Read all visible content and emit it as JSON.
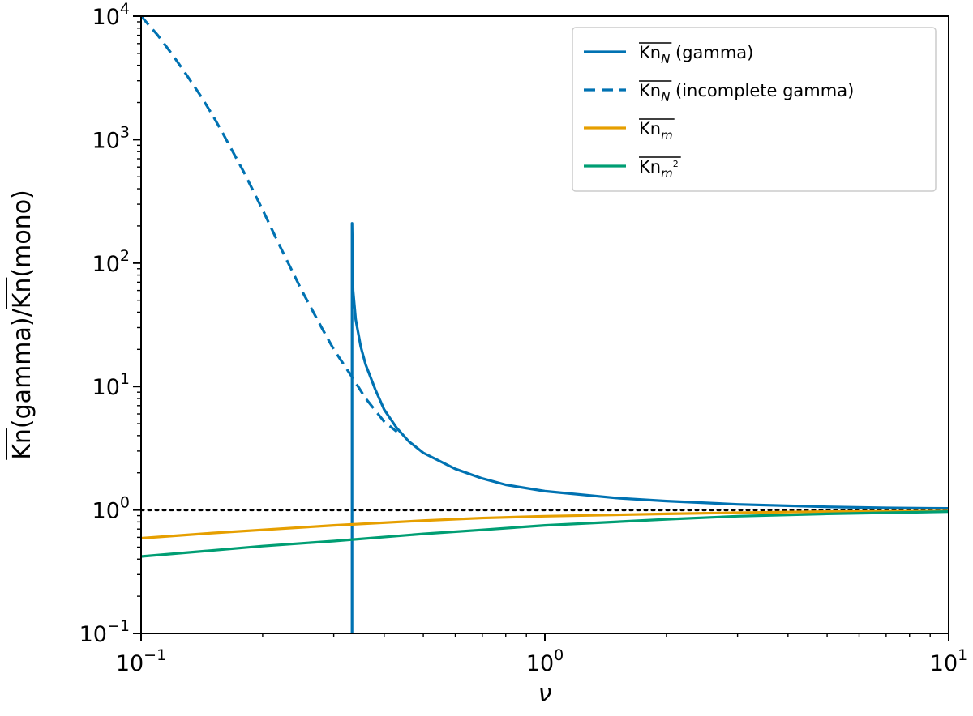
{
  "chart_data": {
    "type": "line",
    "xlabel": "ν",
    "ylabel": "Kn(gamma)/Kn(mono)",
    "xscale": "log",
    "yscale": "log",
    "xlim": [
      0.1,
      10
    ],
    "ylim": [
      0.1,
      10000
    ],
    "x_ticks": [
      {
        "value": 0.1,
        "base": "10",
        "exp": "−1"
      },
      {
        "value": 1,
        "base": "10",
        "exp": "0"
      },
      {
        "value": 10,
        "base": "10",
        "exp": "1"
      }
    ],
    "y_ticks": [
      {
        "value": 0.1,
        "base": "10",
        "exp": "−1"
      },
      {
        "value": 1,
        "base": "10",
        "exp": "0"
      },
      {
        "value": 10,
        "base": "10",
        "exp": "1"
      },
      {
        "value": 100,
        "base": "10",
        "exp": "2"
      },
      {
        "value": 1000,
        "base": "10",
        "exp": "3"
      },
      {
        "value": 10000,
        "base": "10",
        "exp": "4"
      }
    ],
    "grid": false,
    "legend_position": "top-right",
    "reference_line": {
      "y": 1,
      "style": "dotted",
      "color": "#000000"
    },
    "series": [
      {
        "name": "Kn_N (gamma)",
        "legend_base": "Kn",
        "legend_sub": "N",
        "legend_sup": "",
        "legend_suffix": " (gamma)",
        "color": "#0072B2",
        "dash": "solid",
        "points": [
          [
            0.333,
            0.1
          ],
          [
            0.333,
            1.0
          ],
          [
            0.333,
            210
          ],
          [
            0.335,
            60
          ],
          [
            0.34,
            35
          ],
          [
            0.35,
            21
          ],
          [
            0.36,
            15
          ],
          [
            0.38,
            9.5
          ],
          [
            0.4,
            6.5
          ],
          [
            0.43,
            4.6
          ],
          [
            0.46,
            3.6
          ],
          [
            0.5,
            2.9
          ],
          [
            0.6,
            2.15
          ],
          [
            0.7,
            1.8
          ],
          [
            0.8,
            1.6
          ],
          [
            1.0,
            1.42
          ],
          [
            1.5,
            1.25
          ],
          [
            2.0,
            1.18
          ],
          [
            3.0,
            1.11
          ],
          [
            5.0,
            1.06
          ],
          [
            7.0,
            1.04
          ],
          [
            10.0,
            1.03
          ]
        ]
      },
      {
        "name": "Kn_N (incomplete gamma)",
        "legend_base": "Kn",
        "legend_sub": "N",
        "legend_sup": "",
        "legend_suffix": " (incomplete gamma)",
        "color": "#0072B2",
        "dash": "dashed",
        "points": [
          [
            0.1,
            10000
          ],
          [
            0.11,
            7000
          ],
          [
            0.12,
            4800
          ],
          [
            0.13,
            3300
          ],
          [
            0.14,
            2300
          ],
          [
            0.15,
            1600
          ],
          [
            0.16,
            1100
          ],
          [
            0.18,
            540
          ],
          [
            0.2,
            270
          ],
          [
            0.22,
            140
          ],
          [
            0.25,
            60
          ],
          [
            0.28,
            30
          ],
          [
            0.3,
            20
          ],
          [
            0.33,
            12.5
          ],
          [
            0.36,
            8.0
          ],
          [
            0.4,
            5.2
          ],
          [
            0.43,
            4.3
          ]
        ]
      },
      {
        "name": "Kn_m",
        "legend_base": "Kn",
        "legend_sub": "m",
        "legend_sup": "",
        "legend_suffix": "",
        "color": "#E69F00",
        "dash": "solid",
        "points": [
          [
            0.1,
            0.59
          ],
          [
            0.15,
            0.65
          ],
          [
            0.2,
            0.69
          ],
          [
            0.3,
            0.75
          ],
          [
            0.5,
            0.82
          ],
          [
            0.7,
            0.86
          ],
          [
            1.0,
            0.89
          ],
          [
            2.0,
            0.93
          ],
          [
            3.0,
            0.95
          ],
          [
            5.0,
            0.97
          ],
          [
            10.0,
            0.98
          ]
        ]
      },
      {
        "name": "Kn_m2",
        "legend_base": "Kn",
        "legend_sub": "m",
        "legend_sup": "2",
        "legend_suffix": "",
        "color": "#009E73",
        "dash": "solid",
        "points": [
          [
            0.1,
            0.42
          ],
          [
            0.15,
            0.47
          ],
          [
            0.2,
            0.51
          ],
          [
            0.3,
            0.56
          ],
          [
            0.5,
            0.64
          ],
          [
            0.7,
            0.69
          ],
          [
            1.0,
            0.75
          ],
          [
            2.0,
            0.84
          ],
          [
            3.0,
            0.89
          ],
          [
            5.0,
            0.93
          ],
          [
            10.0,
            0.97
          ]
        ]
      }
    ]
  }
}
